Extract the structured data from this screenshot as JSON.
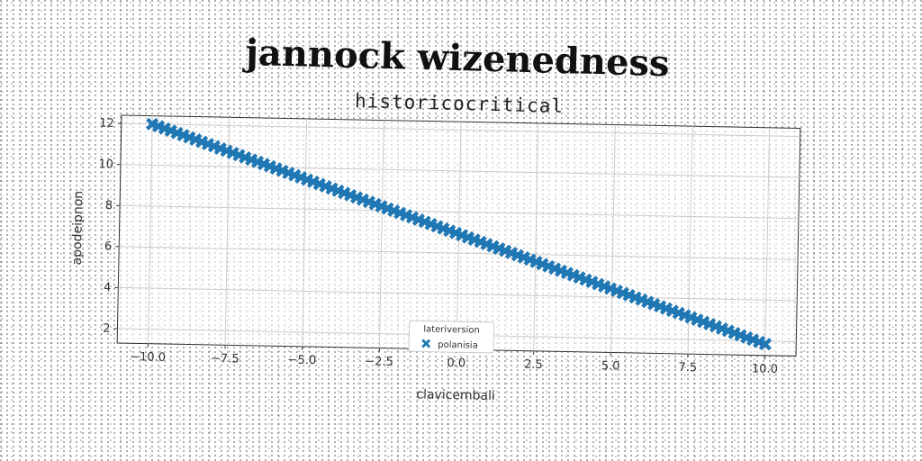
{
  "chart_data": {
    "type": "scatter",
    "title": "jannock wizenedness",
    "subtitle": "historicocritical",
    "xlabel": "clavicembali",
    "ylabel": "apodeipnon",
    "xlim": [
      -11,
      11
    ],
    "ylim": [
      1.3,
      12.4
    ],
    "xticks": [
      -10.0,
      -7.5,
      -5.0,
      -2.5,
      0.0,
      2.5,
      5.0,
      7.5,
      10.0
    ],
    "xtick_labels": [
      "−10.0",
      "−7.5",
      "−5.0",
      "−2.5",
      "0.0",
      "2.5",
      "5.0",
      "7.5",
      "10.0"
    ],
    "yticks": [
      2,
      4,
      6,
      8,
      10,
      12
    ],
    "ytick_labels": [
      "2",
      "4",
      "6",
      "8",
      "10",
      "12"
    ],
    "grid": true,
    "legend": {
      "title": "lateriversion",
      "placement": "lower-center"
    },
    "series": [
      {
        "name": "polanisia",
        "marker": "X",
        "color": "#1f77b4",
        "x_range": [
          -10.0,
          10.0
        ],
        "y_range": [
          12.0,
          1.85
        ],
        "n_points": 100
      }
    ]
  }
}
